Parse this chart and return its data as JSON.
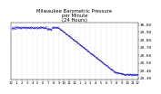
{
  "title": "Milwaukee Barometric Pressure\nper Minute\n(24 Hours)",
  "title_fontsize": 3.8,
  "dot_color": "#0000cc",
  "dot_size": 0.3,
  "background_color": "#ffffff",
  "grid_color": "#aaaacc",
  "ylabel_fontsize": 3.2,
  "xlabel_fontsize": 2.8,
  "ylim": [
    29.28,
    30.02
  ],
  "xlim": [
    -10,
    1450
  ],
  "yticks": [
    29.3,
    29.4,
    29.5,
    29.6,
    29.7,
    29.8,
    29.9,
    30.0
  ],
  "ytick_labels": [
    "29.30",
    "29.40",
    "29.50",
    "29.60",
    "29.70",
    "29.80",
    "29.90",
    "30.00"
  ],
  "xtick_positions": [
    0,
    60,
    120,
    180,
    240,
    300,
    360,
    420,
    480,
    540,
    600,
    660,
    720,
    780,
    840,
    900,
    960,
    1020,
    1080,
    1140,
    1200,
    1260,
    1320,
    1380,
    1440
  ],
  "xtick_labels": [
    "12",
    "1",
    "2",
    "3",
    "4",
    "5",
    "6",
    "7",
    "8",
    "9",
    "10",
    "11",
    "12",
    "1",
    "2",
    "3",
    "4",
    "5",
    "6",
    "7",
    "8",
    "9",
    "10",
    "11",
    "12"
  ]
}
